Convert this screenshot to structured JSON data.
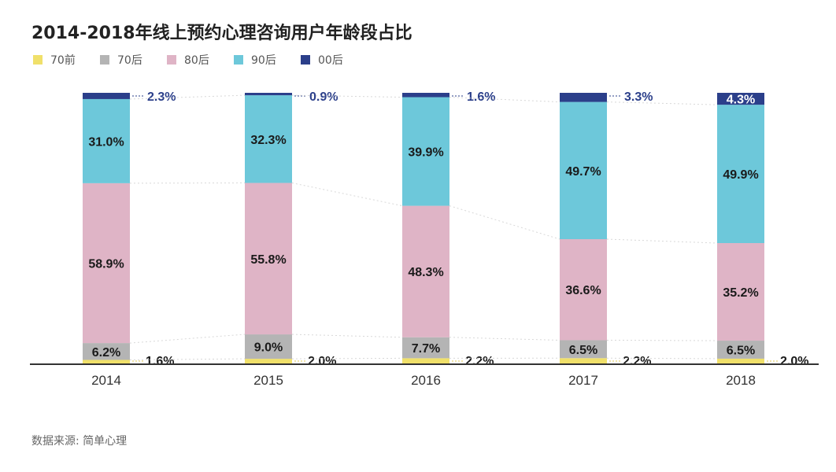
{
  "header": {
    "title": "2014-2018年线上预约心理咨询用户年龄段占比"
  },
  "source": {
    "label": "数据来源: 简单心理"
  },
  "colors": {
    "70前": "#f0e06a",
    "70后": "#b4b4b4",
    "80后": "#dfb4c6",
    "90后": "#6dc8da",
    "00后": "#2b3f8a",
    "label_dark": "#1a1a1a",
    "label_light": "#ffffff"
  },
  "chart_data": {
    "type": "bar",
    "stacked": true,
    "normalized_percent": true,
    "title": "2014-2018年线上预约心理咨询用户年龄段占比",
    "categories": [
      "2014",
      "2015",
      "2016",
      "2017",
      "2018"
    ],
    "series": [
      {
        "name": "70前",
        "values": [
          1.6,
          2.0,
          2.2,
          2.2,
          2.0
        ]
      },
      {
        "name": "70后",
        "values": [
          6.2,
          9.0,
          7.7,
          6.5,
          6.5
        ]
      },
      {
        "name": "80后",
        "values": [
          58.9,
          55.8,
          48.3,
          36.6,
          35.2
        ]
      },
      {
        "name": "90后",
        "values": [
          31.0,
          32.3,
          39.9,
          49.7,
          49.9
        ]
      },
      {
        "name": "00后",
        "values": [
          2.3,
          0.9,
          1.6,
          3.3,
          4.3
        ]
      }
    ],
    "data_labels": [
      [
        "1.6%",
        "6.2%",
        "58.9%",
        "31.0%",
        "2.3%"
      ],
      [
        "2.0%",
        "9.0%",
        "55.8%",
        "32.3%",
        "0.9%"
      ],
      [
        "2.2%",
        "7.7%",
        "48.3%",
        "39.9%",
        "1.6%"
      ],
      [
        "2.2%",
        "6.5%",
        "36.6%",
        "49.7%",
        "3.3%"
      ],
      [
        "2.0%",
        "6.5%",
        "35.2%",
        "49.9%",
        "4.3%"
      ]
    ],
    "xlabel": "",
    "ylabel": "",
    "ylim": [
      0,
      100
    ],
    "legend": "top-left",
    "grid": false
  }
}
